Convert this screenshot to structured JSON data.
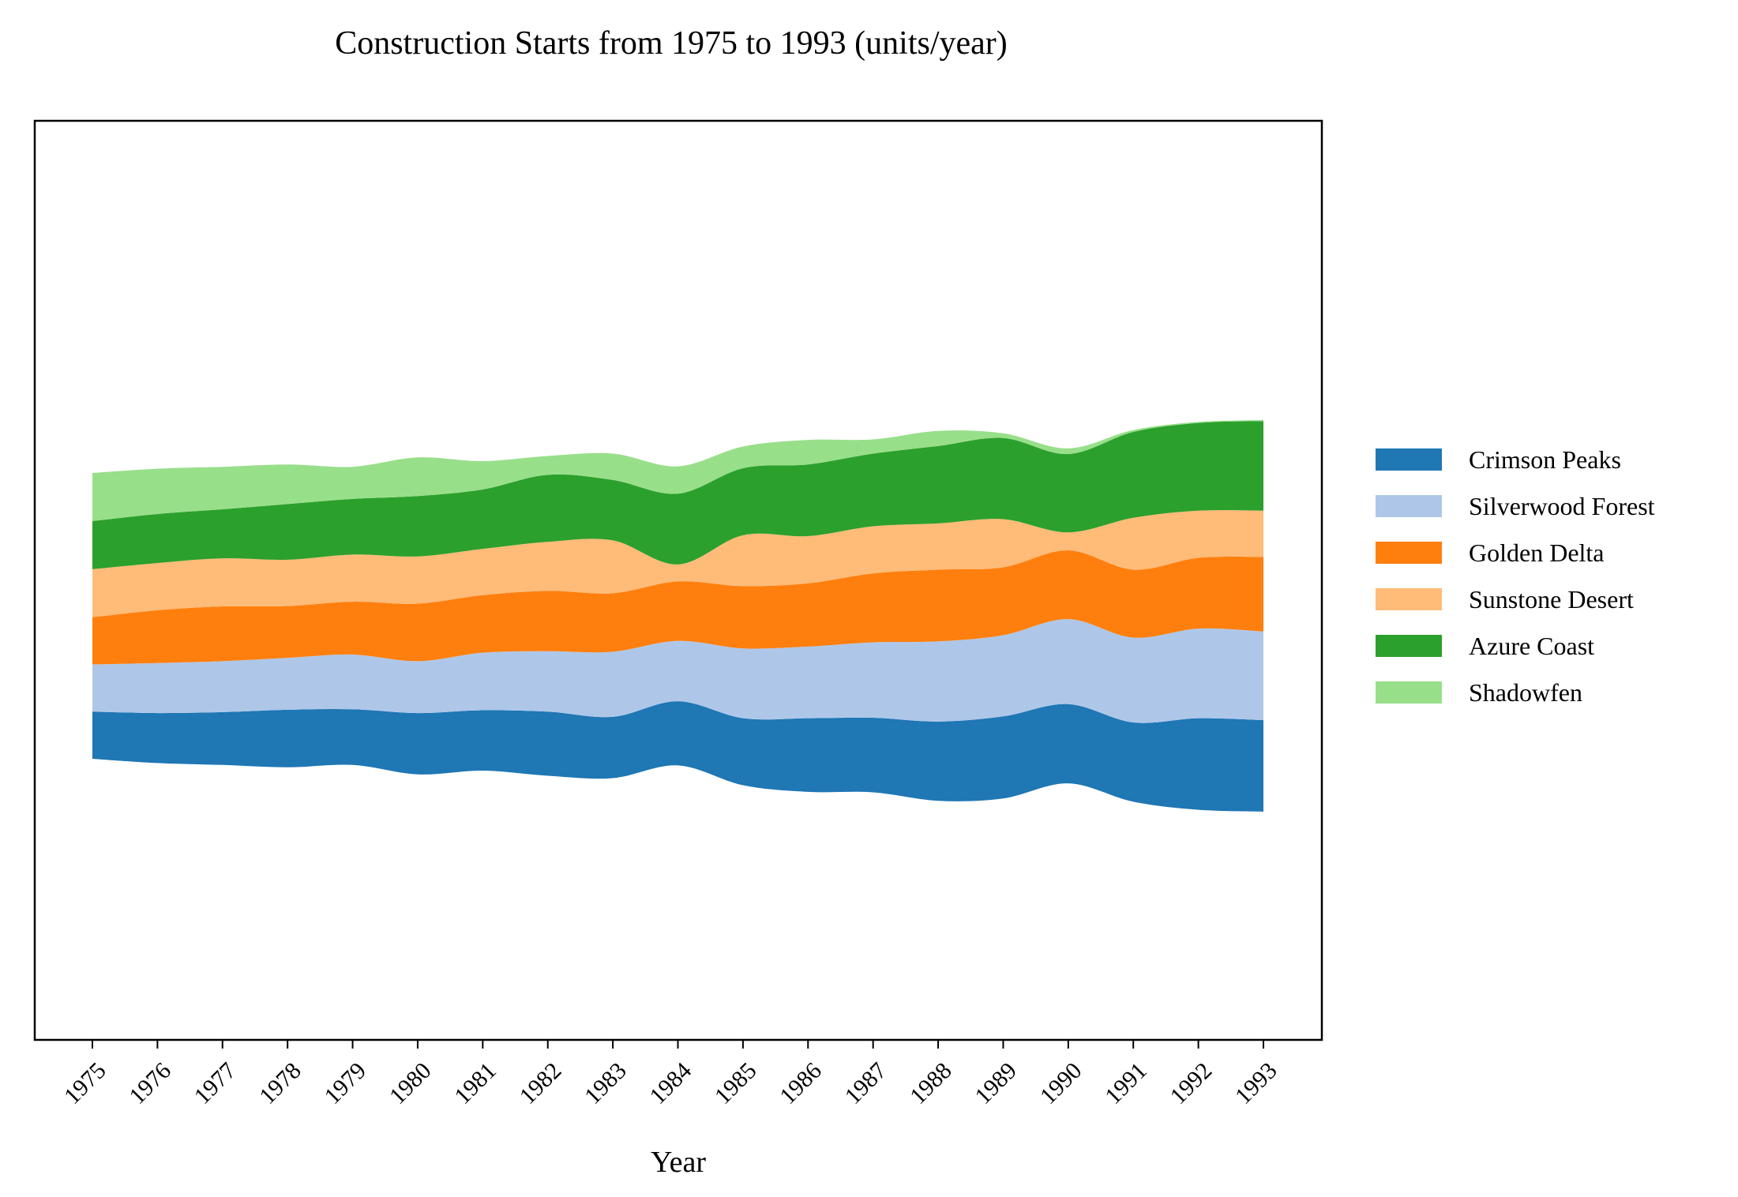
{
  "chart_data": {
    "type": "area",
    "subtype": "streamgraph",
    "title": "Construction Starts from 1975 to 1993 (units/year)",
    "xlabel": "Year",
    "ylabel": "",
    "x": [
      1975,
      1976,
      1977,
      1978,
      1979,
      1980,
      1981,
      1982,
      1983,
      1984,
      1985,
      1986,
      1987,
      1988,
      1989,
      1990,
      1991,
      1992,
      1993
    ],
    "x_tick_labels": [
      "1975",
      "1976",
      "1977",
      "1978",
      "1979",
      "1980",
      "1981",
      "1982",
      "1983",
      "1984",
      "1985",
      "1986",
      "1987",
      "1988",
      "1989",
      "1990",
      "1991",
      "1992",
      "1993"
    ],
    "y_ticks_visible": false,
    "grid": false,
    "legend_position": "right",
    "series": [
      {
        "name": "Crimson Peaks",
        "color": "#1f77b4",
        "values": [
          50,
          53,
          56,
          61,
          59,
          65,
          64,
          68,
          65,
          68,
          71,
          78,
          79,
          84,
          87,
          84,
          84,
          97,
          97
        ]
      },
      {
        "name": "Silverwood Forest",
        "color": "#aec7e8",
        "values": [
          50,
          53,
          54,
          55,
          58,
          55,
          61,
          64,
          69,
          64,
          74,
          76,
          80,
          85,
          86,
          90,
          90,
          95,
          94
        ]
      },
      {
        "name": "Golden Delta",
        "color": "#ff7f0e",
        "values": [
          50,
          56,
          58,
          55,
          56,
          61,
          61,
          64,
          62,
          63,
          66,
          67,
          73,
          76,
          72,
          73,
          72,
          75,
          79
        ]
      },
      {
        "name": "Sunstone Desert",
        "color": "#ffbb78",
        "values": [
          51,
          50,
          51,
          49,
          50,
          50,
          49,
          52,
          56,
          18,
          54,
          50,
          50,
          49,
          51,
          19,
          55,
          50,
          49
        ]
      },
      {
        "name": "Azure Coast",
        "color": "#2ca02c",
        "values": [
          51,
          52,
          52,
          59,
          59,
          64,
          63,
          71,
          64,
          75,
          71,
          76,
          77,
          82,
          86,
          83,
          91,
          93,
          95
        ]
      },
      {
        "name": "Shadowfen",
        "color": "#98df8a",
        "values": [
          51,
          48,
          45,
          42,
          34,
          41,
          30,
          20,
          28,
          29,
          23,
          26,
          15,
          16,
          5,
          6,
          2,
          1,
          1
        ]
      }
    ]
  }
}
